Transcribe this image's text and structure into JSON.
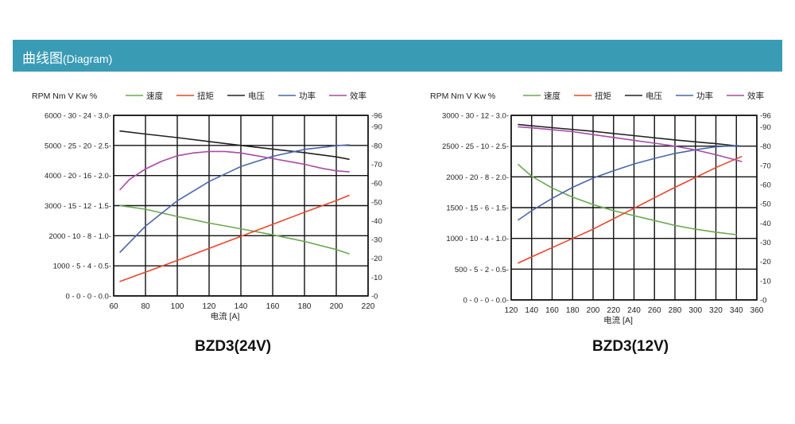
{
  "header": {
    "title_cn": "曲线图",
    "title_en": "(Diagram)"
  },
  "chart_data": [
    {
      "type": "line",
      "title": "BZD3(24V)",
      "xlabel": "电流 [A]",
      "x_ticks": [
        60,
        80,
        100,
        120,
        140,
        160,
        180,
        200,
        220
      ],
      "xlim": [
        60,
        220
      ],
      "left_axis_units": "RPM  Nm  V  Kw  %",
      "left_tick_labels": [
        "6000 - 30 - 24 - 3.0",
        "5000 - 25 - 20 - 2.5",
        "4000 - 20 - 16 - 2.0",
        "3000 - 15 - 12 - 1.5",
        "2000 - 10 -  8 - 1.0",
        "1000 -  5 -  4 - 0.5",
        "0 -   0 -   0 - 0.0"
      ],
      "left_tick_fracs": [
        1.0,
        0.8333,
        0.6667,
        0.5,
        0.3333,
        0.1667,
        0.0
      ],
      "ylim_rpm": [
        0,
        6000
      ],
      "right_ticks": [
        96,
        90,
        80,
        70,
        60,
        50,
        40,
        30,
        20,
        10,
        0
      ],
      "right_tick_labels": [
        "-96",
        "-90",
        "-80",
        "-70",
        "-60",
        "-50",
        "-40",
        "-30",
        "-20",
        "-10",
        "-0"
      ],
      "ylim_pct": [
        0,
        96
      ],
      "series": [
        {
          "name": "速度",
          "color": "#6aa84f",
          "axis": "rpm",
          "x": [
            64,
            80,
            100,
            120,
            140,
            160,
            180,
            200,
            208
          ],
          "y": [
            3000,
            2880,
            2640,
            2420,
            2230,
            2030,
            1810,
            1540,
            1400
          ]
        },
        {
          "name": "扭矩",
          "color": "#e8462c",
          "axis": "rpm",
          "x": [
            64,
            80,
            100,
            120,
            140,
            160,
            180,
            200,
            208
          ],
          "y": [
            480,
            790,
            1180,
            1580,
            1980,
            2380,
            2780,
            3170,
            3340
          ]
        },
        {
          "name": "电压",
          "color": "#222222",
          "axis": "rpm",
          "x": [
            64,
            80,
            100,
            120,
            140,
            160,
            180,
            200,
            208
          ],
          "y": [
            5480,
            5380,
            5260,
            5130,
            5000,
            4880,
            4760,
            4620,
            4540
          ]
        },
        {
          "name": "功率",
          "color": "#4a67a8",
          "axis": "rpm",
          "x": [
            64,
            80,
            100,
            120,
            140,
            160,
            180,
            200,
            208
          ],
          "y": [
            1450,
            2320,
            3160,
            3800,
            4300,
            4640,
            4870,
            4990,
            5020
          ]
        },
        {
          "name": "效率",
          "color": "#a64ca6",
          "axis": "pct",
          "x": [
            64,
            70,
            80,
            90,
            100,
            110,
            120,
            130,
            140,
            150,
            160,
            170,
            180,
            190,
            200,
            208
          ],
          "y": [
            56.5,
            62,
            67.5,
            71.5,
            74.5,
            76,
            76.8,
            76.8,
            76,
            74.5,
            73,
            71.5,
            70,
            68,
            66.5,
            66
          ]
        }
      ]
    },
    {
      "type": "line",
      "title": "BZD3(12V)",
      "xlabel": "电流 [A]",
      "x_ticks": [
        120,
        140,
        160,
        180,
        200,
        220,
        240,
        260,
        280,
        300,
        320,
        340,
        360
      ],
      "xlim": [
        120,
        360
      ],
      "left_axis_units": "RPM  Nm  V  Kw  %",
      "left_tick_labels": [
        "3000 - 30 - 12 - 3.0",
        "2500 - 25 - 10 - 2.5",
        "2000 - 20 -  8 - 2.0",
        "1500 - 15 -  6 - 1.5",
        "1000 - 10 -  4 - 1.0",
        "500 -  5 -  2 - 0.5",
        "0 -  0 -  0 - 0.0"
      ],
      "left_tick_fracs": [
        1.0,
        0.8333,
        0.6667,
        0.5,
        0.3333,
        0.1667,
        0.0
      ],
      "ylim_rpm": [
        0,
        3000
      ],
      "right_ticks": [
        96,
        90,
        80,
        70,
        60,
        50,
        40,
        30,
        20,
        10,
        0
      ],
      "right_tick_labels": [
        "-96",
        "-90",
        "-80",
        "-70",
        "-60",
        "-50",
        "-40",
        "-30",
        "-20",
        "-10",
        "-0"
      ],
      "ylim_pct": [
        0,
        96
      ],
      "series": [
        {
          "name": "速度",
          "color": "#6aa84f",
          "axis": "rpm",
          "x": [
            127,
            140,
            160,
            180,
            200,
            220,
            240,
            260,
            280,
            300,
            320,
            340
          ],
          "y": [
            2200,
            2010,
            1820,
            1670,
            1550,
            1450,
            1370,
            1290,
            1210,
            1150,
            1100,
            1060
          ]
        },
        {
          "name": "扭矩",
          "color": "#e8462c",
          "axis": "rpm",
          "x": [
            127,
            140,
            160,
            180,
            200,
            220,
            240,
            260,
            280,
            300,
            320,
            345
          ],
          "y": [
            600,
            700,
            850,
            1000,
            1150,
            1320,
            1490,
            1660,
            1830,
            1990,
            2150,
            2330
          ]
        },
        {
          "name": "电压",
          "color": "#222222",
          "axis": "rpm",
          "x": [
            127,
            160,
            200,
            240,
            280,
            320,
            342
          ],
          "y": [
            2850,
            2800,
            2740,
            2670,
            2600,
            2540,
            2500
          ]
        },
        {
          "name": "功率",
          "color": "#4a67a8",
          "axis": "rpm",
          "x": [
            127,
            140,
            160,
            180,
            200,
            220,
            240,
            260,
            280,
            300,
            320,
            342
          ],
          "y": [
            1300,
            1450,
            1650,
            1830,
            1980,
            2100,
            2210,
            2300,
            2380,
            2440,
            2490,
            2510
          ]
        },
        {
          "name": "效率",
          "color": "#a64ca6",
          "axis": "pct",
          "x": [
            127,
            140,
            160,
            180,
            200,
            220,
            240,
            260,
            280,
            300,
            320,
            345
          ],
          "y": [
            90,
            89.5,
            88.5,
            87.5,
            86,
            84.5,
            83,
            81.5,
            80,
            78,
            75.5,
            72
          ]
        }
      ]
    }
  ]
}
